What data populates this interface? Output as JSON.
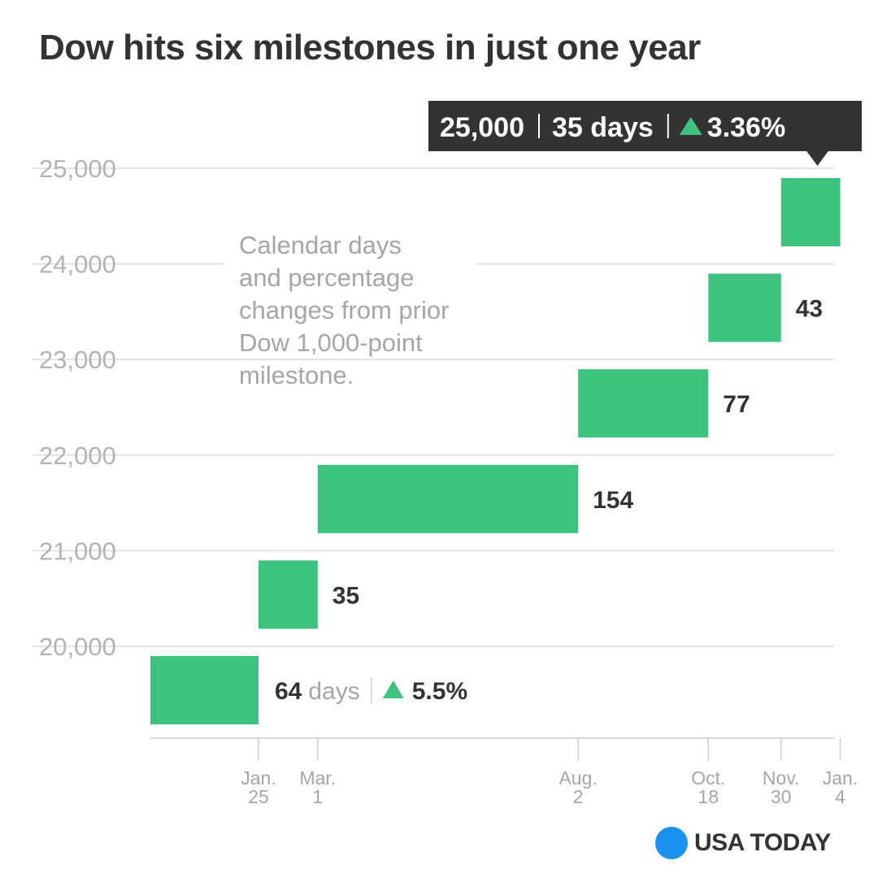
{
  "title": "Dow hits six milestones in just one year",
  "colors": {
    "bar": "#3ec37f",
    "grid": "#dcdcdc",
    "axis": "#cccccc",
    "callout_bg": "#333333",
    "logo_dot": "#1b91f2"
  },
  "chart_data": {
    "type": "bar",
    "title": "Dow hits six milestones in just one year",
    "note": [
      "Calendar days",
      "and percentage",
      "changes from prior",
      "Dow 1,000-point",
      "milestone."
    ],
    "y_ticks": [
      "20,000",
      "21,000",
      "22,000",
      "23,000",
      "24,000",
      "25,000"
    ],
    "y_tick_values": [
      20000,
      21000,
      22000,
      23000,
      24000,
      25000
    ],
    "x_ticks": [
      {
        "line1": "Jan.",
        "line2": "25"
      },
      {
        "line1": "Mar.",
        "line2": "1"
      },
      {
        "line1": "Aug.",
        "line2": "2"
      },
      {
        "line1": "Oct.",
        "line2": "18"
      },
      {
        "line1": "Nov.",
        "line2": "30"
      },
      {
        "line1": "Jan.",
        "line2": "4"
      }
    ],
    "x_tick_days": [
      24,
      59,
      213,
      290,
      333,
      368
    ],
    "bars": [
      {
        "milestone": 20000,
        "start_day": -40,
        "end_day": 24,
        "label": "64",
        "days_word": "days",
        "pct": "5.5%"
      },
      {
        "milestone": 21000,
        "start_day": 24,
        "end_day": 59,
        "label": "35"
      },
      {
        "milestone": 22000,
        "start_day": 59,
        "end_day": 213,
        "label": "154"
      },
      {
        "milestone": 23000,
        "start_day": 213,
        "end_day": 290,
        "label": "77"
      },
      {
        "milestone": 24000,
        "start_day": 290,
        "end_day": 333,
        "label": "43"
      },
      {
        "milestone": 25000,
        "start_day": 333,
        "end_day": 368,
        "label": ""
      }
    ],
    "callout": {
      "value": "25,000",
      "days": "35 days",
      "pct": "3.36%"
    }
  },
  "logo": {
    "text": "USA TODAY"
  }
}
